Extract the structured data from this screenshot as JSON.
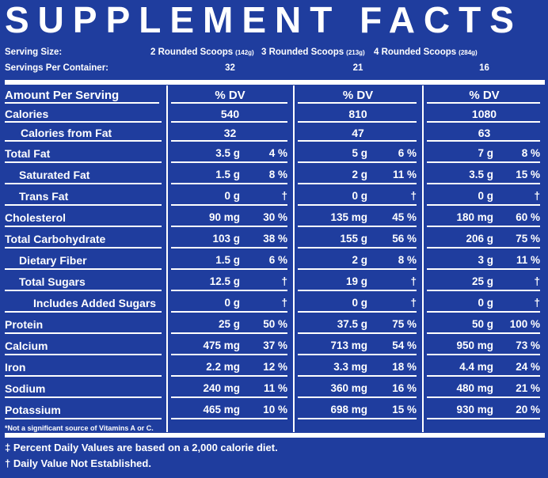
{
  "title": "SUPPLEMENT FACTS",
  "serving_size_label": "Serving Size:",
  "servings_per_container_label": "Servings Per Container:",
  "columns": [
    {
      "serving": "2 Rounded Scoops",
      "grams": "(142g)",
      "servings": "32",
      "header": "% DV",
      "calories": "540",
      "calories_from_fat": "32"
    },
    {
      "serving": "3 Rounded Scoops",
      "grams": "(213g)",
      "servings": "21",
      "header": "% DV",
      "calories": "810",
      "calories_from_fat": "47"
    },
    {
      "serving": "4 Rounded Scoops",
      "grams": "(284g)",
      "servings": "16",
      "header": "% DV",
      "calories": "1080",
      "calories_from_fat": "63"
    }
  ],
  "header_label": "Amount Per Serving",
  "calories_label": "Calories",
  "calories_from_fat_label": "Calories from Fat",
  "nutrients": [
    {
      "name": "Total Fat",
      "indent": 0,
      "values": [
        [
          "3.5 g",
          "4 %"
        ],
        [
          "5 g",
          "6 %"
        ],
        [
          "7 g",
          "8 %"
        ]
      ]
    },
    {
      "name": "Saturated Fat",
      "indent": 1,
      "values": [
        [
          "1.5 g",
          "8 %"
        ],
        [
          "2 g",
          "11 %"
        ],
        [
          "3.5 g",
          "15 %"
        ]
      ]
    },
    {
      "name": "Trans Fat",
      "indent": 1,
      "values": [
        [
          "0 g",
          "†"
        ],
        [
          "0 g",
          "†"
        ],
        [
          "0 g",
          "†"
        ]
      ]
    },
    {
      "name": "Cholesterol",
      "indent": 0,
      "values": [
        [
          "90 mg",
          "30 %"
        ],
        [
          "135 mg",
          "45 %"
        ],
        [
          "180 mg",
          "60 %"
        ]
      ]
    },
    {
      "name": "Total Carbohydrate",
      "indent": 0,
      "values": [
        [
          "103 g",
          "38 %"
        ],
        [
          "155 g",
          "56 %"
        ],
        [
          "206 g",
          "75 %"
        ]
      ]
    },
    {
      "name": "Dietary Fiber",
      "indent": 1,
      "values": [
        [
          "1.5 g",
          "6 %"
        ],
        [
          "2 g",
          "8 %"
        ],
        [
          "3 g",
          "11 %"
        ]
      ]
    },
    {
      "name": "Total Sugars",
      "indent": 1,
      "values": [
        [
          "12.5 g",
          "†"
        ],
        [
          "19 g",
          "†"
        ],
        [
          "25 g",
          "†"
        ]
      ]
    },
    {
      "name": "Includes Added Sugars",
      "indent": 2,
      "values": [
        [
          "0 g",
          "†"
        ],
        [
          "0 g",
          "†"
        ],
        [
          "0 g",
          "†"
        ]
      ]
    },
    {
      "name": "Protein",
      "indent": 0,
      "values": [
        [
          "25 g",
          "50 %"
        ],
        [
          "37.5 g",
          "75 %"
        ],
        [
          "50 g",
          "100 %"
        ]
      ]
    },
    {
      "name": "Calcium",
      "indent": 0,
      "values": [
        [
          "475 mg",
          "37 %"
        ],
        [
          "713 mg",
          "54 %"
        ],
        [
          "950 mg",
          "73 %"
        ]
      ]
    },
    {
      "name": "Iron",
      "indent": 0,
      "values": [
        [
          "2.2 mg",
          "12 %"
        ],
        [
          "3.3 mg",
          "18 %"
        ],
        [
          "4.4 mg",
          "24 %"
        ]
      ]
    },
    {
      "name": "Sodium",
      "indent": 0,
      "values": [
        [
          "240 mg",
          "11 %"
        ],
        [
          "360 mg",
          "16 %"
        ],
        [
          "480 mg",
          "21 %"
        ]
      ]
    },
    {
      "name": "Potassium",
      "indent": 0,
      "values": [
        [
          "465 mg",
          "10 %"
        ],
        [
          "698 mg",
          "15 %"
        ],
        [
          "930 mg",
          "20 %"
        ]
      ]
    }
  ],
  "note": "*Not a significant source of Vitamins A or C.",
  "footnotes": [
    "‡ Percent Daily Values are based on a 2,000 calorie diet.",
    "† Daily Value Not Established."
  ]
}
